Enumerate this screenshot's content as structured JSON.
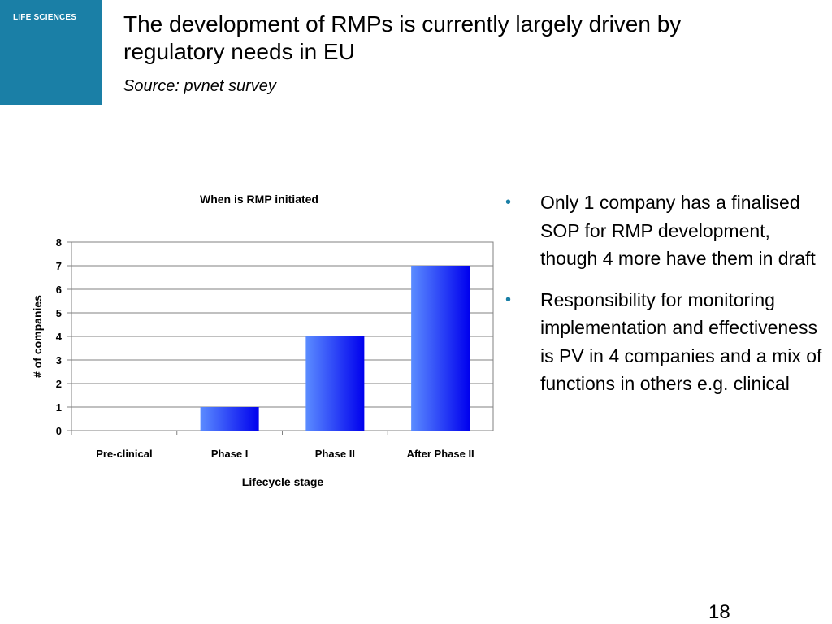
{
  "logo": {
    "text": "LIFE SCIENCES"
  },
  "slide": {
    "title": "The development of RMPs is currently largely driven by regulatory needs in EU",
    "subtitle": "Source: pvnet survey",
    "page_number": "18"
  },
  "bullets": [
    {
      "marker": "•",
      "text": "Only 1 company has a finalised SOP for RMP development, though 4 more have them in draft"
    },
    {
      "marker": "•",
      "text": "Responsibility for monitoring implementation and effectiveness is PV in 4 companies and a mix of functions in others e.g. clinical"
    }
  ],
  "colors": {
    "accent": "#1a7fa6",
    "bar_light": "#5b8cff",
    "bar_dark": "#0000ee"
  },
  "chart_data": {
    "type": "bar",
    "title": "When is RMP initiated",
    "xlabel": "Lifecycle stage",
    "ylabel": "# of companies",
    "categories": [
      "Pre-clinical",
      "Phase I",
      "Phase II",
      "After Phase II"
    ],
    "values": [
      0,
      1,
      4,
      7
    ],
    "ylim": [
      0,
      8
    ],
    "yticks": [
      0,
      1,
      2,
      3,
      4,
      5,
      6,
      7,
      8
    ],
    "grid": true,
    "legend": "none"
  }
}
